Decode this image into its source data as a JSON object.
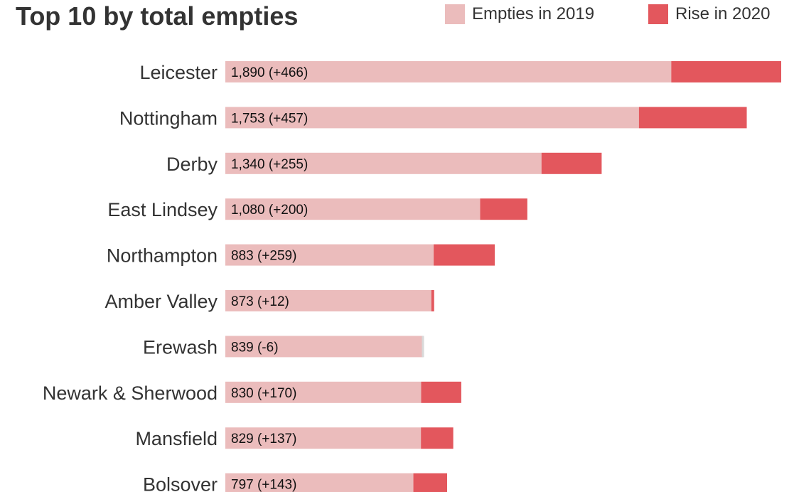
{
  "chart_data": {
    "type": "bar",
    "title": "Top 10 by total empties",
    "orientation": "horizontal",
    "stacked": true,
    "categories": [
      "Leicester",
      "Nottingham",
      "Derby",
      "East Lindsey",
      "Northampton",
      "Amber Valley",
      "Erewash",
      "Newark & Sherwood",
      "Mansfield",
      "Bolsover"
    ],
    "series": [
      {
        "name": "Empties in 2019",
        "color": "#ebbcbc",
        "values": [
          1890,
          1753,
          1340,
          1080,
          883,
          873,
          839,
          830,
          829,
          797
        ]
      },
      {
        "name": "Rise in 2020",
        "color": "#e3575d",
        "values": [
          466,
          457,
          255,
          200,
          259,
          12,
          -6,
          170,
          137,
          143
        ]
      }
    ],
    "data_labels": [
      "1,890 (+466)",
      "1,753 (+457)",
      "1,340 (+255)",
      "1,080 (+200)",
      "883 (+259)",
      "873 (+12)",
      "839 (-6)",
      "830 (+170)",
      "829 (+137)",
      "797 (+143)"
    ],
    "negative_color": "#d9d9d9",
    "legend_position": "top-right",
    "grid": false,
    "axes_visible": false
  }
}
